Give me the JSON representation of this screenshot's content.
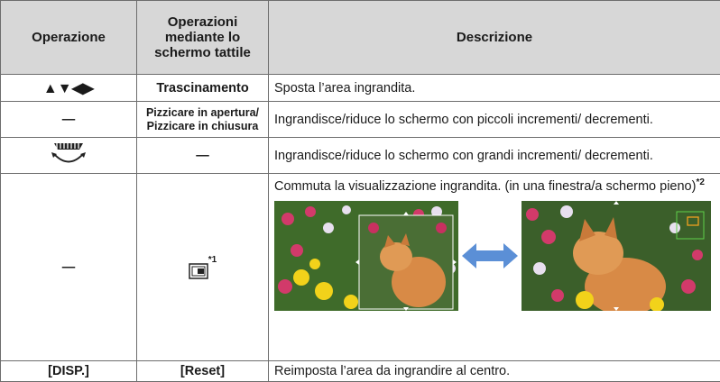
{
  "table": {
    "header": [
      "Operazione",
      "Operazioni mediante lo schermo tattile",
      "Descrizione"
    ],
    "rows": [
      {
        "operation": "▲▼◀▶",
        "touch": "Trascinamento",
        "description": "Sposta l’area ingrandita."
      },
      {
        "operation": "—",
        "touch": "Pizzicare in apertura/ Pizzicare in chiusura",
        "description": "Ingrandisce/riduce lo schermo con piccoli incrementi/ decrementi."
      },
      {
        "touch": "—",
        "description": "Ingrandisce/riduce lo schermo con grandi incrementi/ decrementi."
      },
      {
        "operation": "—",
        "touch_note": "*1",
        "description": "Commuta la visualizzazione ingrandita. (in una finestra/a schermo pieno)",
        "description_note": "*2"
      },
      {
        "operation": "[DISP.]",
        "touch": "[Reset]",
        "description": "Reimposta l’area da ingrandire al centro."
      }
    ]
  }
}
